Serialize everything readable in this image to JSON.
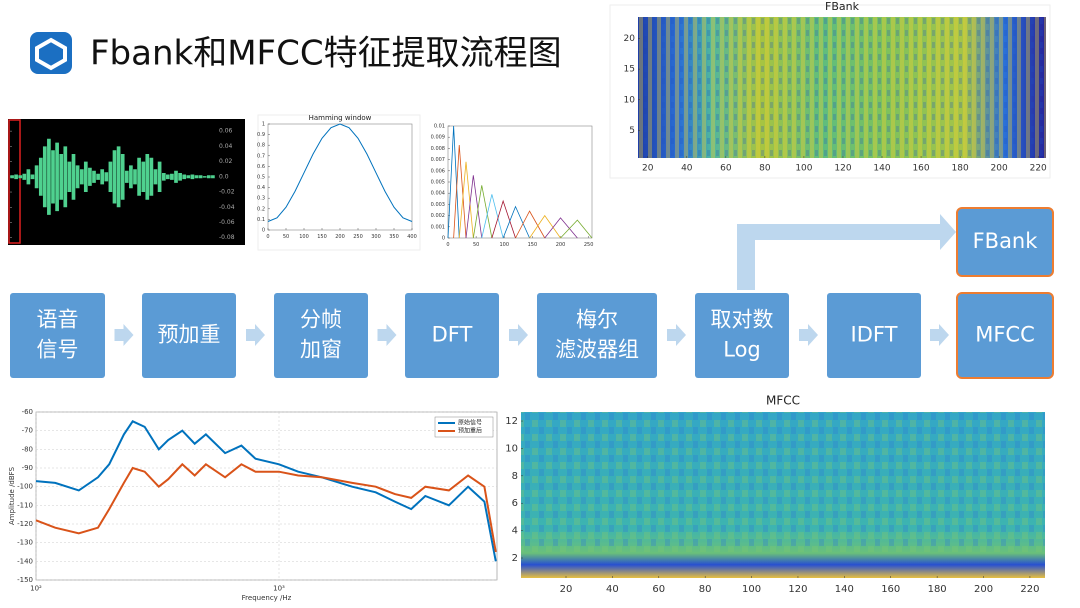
{
  "header": {
    "title": "Fbank和MFCC特征提取流程图"
  },
  "flow": {
    "nodes": [
      {
        "lines": [
          "语音",
          "信号"
        ]
      },
      {
        "lines": [
          "预加重"
        ]
      },
      {
        "lines": [
          "分帧",
          "加窗"
        ]
      },
      {
        "lines": [
          "DFT"
        ]
      },
      {
        "lines": [
          "梅尔",
          "滤波器组"
        ]
      },
      {
        "lines": [
          "取对数",
          "Log"
        ]
      },
      {
        "lines": [
          "IDFT"
        ]
      },
      {
        "lines": [
          "MFCC"
        ]
      },
      {
        "lines": [
          "FBank"
        ]
      }
    ]
  },
  "waveform": {
    "ylim": [
      -0.083,
      0.072
    ],
    "yticks": [
      0.06,
      0.04,
      0.02,
      {
        "value": 0,
        "label": "0.0"
      },
      -0.02,
      -0.04,
      -0.06,
      -0.08
    ],
    "color": "#4fd18f",
    "envelope": [
      0.002,
      0.003,
      0.002,
      0.004,
      0.01,
      0.003,
      0.015,
      0.025,
      0.04,
      0.05,
      0.035,
      0.045,
      0.03,
      0.04,
      0.02,
      0.03,
      0.015,
      0.01,
      0.02,
      0.012,
      0.008,
      0.004,
      0.01,
      0.006,
      0.02,
      0.035,
      0.04,
      0.03,
      0.008,
      0.015,
      0.01,
      0.025,
      0.02,
      0.03,
      0.025,
      0.01,
      0.02,
      0.005,
      0.003,
      0.004,
      0.008,
      0.005,
      0.003,
      0.002,
      0.003,
      0.002,
      0.002,
      0.001,
      0.002,
      0.002
    ]
  },
  "hamming": {
    "title": "Hamming window",
    "xlim": [
      0,
      400
    ],
    "ylim": [
      0,
      1
    ],
    "xticks": [
      0,
      50,
      100,
      150,
      200,
      250,
      300,
      350,
      400
    ],
    "yticks": [
      0,
      0.1,
      0.2,
      0.3,
      0.4,
      0.5,
      0.6,
      0.7,
      0.8,
      0.9,
      1
    ],
    "color": "#0072bd",
    "x": [
      0,
      25,
      50,
      75,
      100,
      125,
      150,
      175,
      200,
      225,
      250,
      275,
      300,
      325,
      350,
      375,
      400
    ],
    "values": [
      0.08,
      0.115,
      0.215,
      0.364,
      0.54,
      0.716,
      0.865,
      0.965,
      1,
      0.965,
      0.865,
      0.716,
      0.54,
      0.364,
      0.215,
      0.115,
      0.08
    ]
  },
  "mel": {
    "xlim": [
      0,
      256
    ],
    "ylim": [
      0,
      0.01
    ],
    "xticks": [
      0,
      50,
      100,
      150,
      200,
      250
    ],
    "yticks": [
      0,
      0.001,
      0.002,
      0.003,
      0.004,
      0.005,
      0.006,
      0.007,
      0.008,
      0.009,
      0.01
    ],
    "colors": [
      "#0072bd",
      "#d95319",
      "#edb120",
      "#7e2f8e",
      "#77ac30",
      "#4dbeee",
      "#a2142f"
    ],
    "filters": [
      {
        "x": [
          0,
          10,
          20
        ],
        "peak": 0.01
      },
      {
        "x": [
          10,
          20,
          32
        ],
        "peak": 0.0083
      },
      {
        "x": [
          20,
          32,
          45
        ],
        "peak": 0.0068
      },
      {
        "x": [
          32,
          45,
          60
        ],
        "peak": 0.0056
      },
      {
        "x": [
          45,
          60,
          78
        ],
        "peak": 0.0047
      },
      {
        "x": [
          60,
          78,
          98
        ],
        "peak": 0.0039
      },
      {
        "x": [
          78,
          98,
          120
        ],
        "peak": 0.0033
      },
      {
        "x": [
          98,
          120,
          145
        ],
        "peak": 0.0028
      },
      {
        "x": [
          120,
          145,
          172
        ],
        "peak": 0.0024
      },
      {
        "x": [
          145,
          172,
          200
        ],
        "peak": 0.002
      },
      {
        "x": [
          172,
          200,
          230
        ],
        "peak": 0.0018
      },
      {
        "x": [
          200,
          230,
          256
        ],
        "peak": 0.0016
      }
    ]
  },
  "fbank": {
    "title": "FBank",
    "xlim": [
      15,
      224
    ],
    "ylim": [
      0.5,
      23.5
    ],
    "xticks": [
      20,
      40,
      60,
      80,
      100,
      120,
      140,
      160,
      180,
      200,
      220
    ],
    "yticks": [
      5,
      10,
      15,
      20
    ]
  },
  "mfcc": {
    "title": "MFCC",
    "xlim": [
      0.6,
      226.5
    ],
    "ylim": [
      0.54,
      12.66
    ],
    "xticks": [
      20,
      40,
      60,
      80,
      100,
      120,
      140,
      160,
      180,
      200,
      220
    ],
    "yticks": [
      2,
      4,
      6,
      8,
      10,
      12
    ]
  },
  "spectrum": {
    "type": "line",
    "xlabel": "Frequency /Hz",
    "ylabel": "Amplitude /dBFS",
    "log_x": true,
    "grid": true,
    "legend": "upper right",
    "xlim": [
      100,
      7890
    ],
    "ylim": [
      -150,
      -60
    ],
    "xticks": [
      {
        "value": 100,
        "label": "10²"
      },
      {
        "value": 1000,
        "label": "10³"
      }
    ],
    "yticks": [
      -60,
      -70,
      -80,
      -90,
      -100,
      -110,
      -120,
      -130,
      -140,
      -150
    ],
    "x": [
      100,
      120,
      150,
      180,
      200,
      230,
      250,
      280,
      320,
      350,
      400,
      450,
      500,
      600,
      700,
      800,
      1000,
      1200,
      1500,
      2000,
      2500,
      3000,
      3500,
      4000,
      5000,
      6000,
      7000,
      7800
    ],
    "series": [
      {
        "name": "原始信号",
        "color": "#0072bd",
        "values": [
          -97,
          -98,
          -102,
          -95,
          -88,
          -72,
          -65,
          -68,
          -80,
          -75,
          -70,
          -77,
          -72,
          -82,
          -78,
          -85,
          -88,
          -92,
          -95,
          -100,
          -103,
          -108,
          -112,
          -105,
          -110,
          -100,
          -108,
          -140
        ]
      },
      {
        "name": "预加重后",
        "color": "#d95319",
        "values": [
          -118,
          -122,
          -125,
          -122,
          -112,
          -98,
          -90,
          -92,
          -100,
          -96,
          -88,
          -94,
          -88,
          -95,
          -88,
          -92,
          -92,
          -94,
          -95,
          -98,
          -100,
          -104,
          -106,
          -100,
          -102,
          -94,
          -100,
          -135
        ]
      }
    ]
  }
}
